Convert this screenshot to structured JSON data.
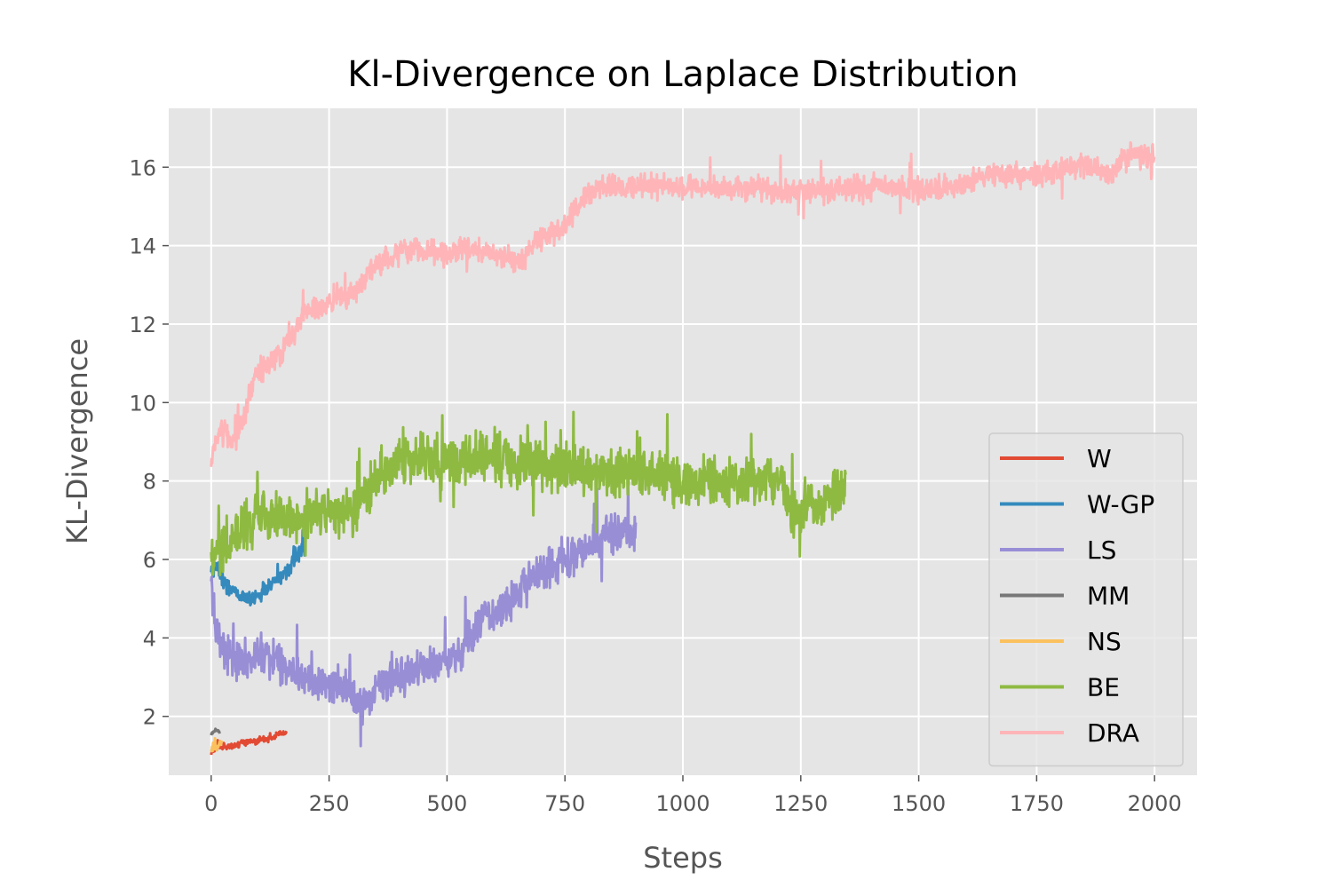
{
  "chart_data": {
    "type": "line",
    "title": "Kl-Divergence on Laplace Distribution",
    "xlabel": "Steps",
    "ylabel": "KL-Divergence",
    "xlim": [
      -90,
      2090
    ],
    "ylim": [
      0.5,
      17.5
    ],
    "xticks": [
      0,
      250,
      500,
      750,
      1000,
      1250,
      1500,
      1750,
      2000
    ],
    "yticks": [
      2,
      4,
      6,
      8,
      10,
      12,
      14,
      16
    ],
    "grid": true,
    "legend_position": "lower right",
    "background": "#e5e5e5",
    "series": [
      {
        "name": "W",
        "color": "#e24a33",
        "noise": 0.08,
        "points": [
          [
            0,
            1.1
          ],
          [
            15,
            1.25
          ],
          [
            40,
            1.22
          ],
          [
            70,
            1.35
          ],
          [
            100,
            1.38
          ],
          [
            130,
            1.45
          ],
          [
            150,
            1.6
          ],
          [
            160,
            1.55
          ]
        ]
      },
      {
        "name": "W-GP",
        "color": "#348abd",
        "noise": 0.18,
        "points": [
          [
            0,
            5.6
          ],
          [
            10,
            5.9
          ],
          [
            30,
            5.3
          ],
          [
            60,
            5.1
          ],
          [
            90,
            5.0
          ],
          [
            120,
            5.3
          ],
          [
            150,
            5.6
          ],
          [
            180,
            6.0
          ],
          [
            200,
            6.3
          ]
        ]
      },
      {
        "name": "LS",
        "color": "#988ed5",
        "noise": 0.45,
        "points": [
          [
            0,
            5.4
          ],
          [
            10,
            4.3
          ],
          [
            20,
            3.8
          ],
          [
            50,
            3.4
          ],
          [
            100,
            3.6
          ],
          [
            150,
            3.3
          ],
          [
            200,
            2.9
          ],
          [
            250,
            2.8
          ],
          [
            300,
            2.6
          ],
          [
            320,
            2.2
          ],
          [
            350,
            2.7
          ],
          [
            400,
            3.0
          ],
          [
            450,
            3.2
          ],
          [
            500,
            3.4
          ],
          [
            530,
            3.6
          ],
          [
            560,
            4.2
          ],
          [
            600,
            4.7
          ],
          [
            650,
            5.1
          ],
          [
            700,
            5.7
          ],
          [
            750,
            6.0
          ],
          [
            800,
            6.3
          ],
          [
            850,
            6.7
          ],
          [
            900,
            6.7
          ]
        ]
      },
      {
        "name": "MM",
        "color": "#777777",
        "noise": 0.05,
        "points": [
          [
            0,
            1.55
          ],
          [
            6,
            1.62
          ],
          [
            12,
            1.65
          ],
          [
            18,
            1.6
          ]
        ]
      },
      {
        "name": "NS",
        "color": "#fbc15e",
        "noise": 0.15,
        "points": [
          [
            0,
            1.1
          ],
          [
            5,
            1.3
          ],
          [
            10,
            1.2
          ],
          [
            15,
            1.3
          ],
          [
            22,
            1.35
          ]
        ]
      },
      {
        "name": "BE",
        "color": "#8eba42",
        "noise": 0.55,
        "points": [
          [
            0,
            6.1
          ],
          [
            50,
            6.7
          ],
          [
            100,
            7.1
          ],
          [
            200,
            7.1
          ],
          [
            300,
            7.2
          ],
          [
            350,
            8.0
          ],
          [
            400,
            8.6
          ],
          [
            500,
            8.5
          ],
          [
            600,
            8.6
          ],
          [
            700,
            8.4
          ],
          [
            800,
            8.3
          ],
          [
            900,
            8.2
          ],
          [
            1000,
            8.0
          ],
          [
            1100,
            8.0
          ],
          [
            1200,
            8.0
          ],
          [
            1240,
            7.1
          ],
          [
            1300,
            7.5
          ],
          [
            1345,
            7.8
          ]
        ]
      },
      {
        "name": "DRA",
        "color": "#ffb5b8",
        "noise": 0.28,
        "points": [
          [
            0,
            8.5
          ],
          [
            15,
            9.3
          ],
          [
            50,
            9.0
          ],
          [
            100,
            10.8
          ],
          [
            150,
            11.3
          ],
          [
            200,
            12.3
          ],
          [
            250,
            12.5
          ],
          [
            300,
            12.8
          ],
          [
            350,
            13.5
          ],
          [
            400,
            13.8
          ],
          [
            450,
            13.9
          ],
          [
            500,
            13.8
          ],
          [
            550,
            13.9
          ],
          [
            600,
            13.8
          ],
          [
            650,
            13.6
          ],
          [
            700,
            14.2
          ],
          [
            750,
            14.5
          ],
          [
            800,
            15.4
          ],
          [
            850,
            15.5
          ],
          [
            900,
            15.5
          ],
          [
            950,
            15.5
          ],
          [
            1000,
            15.5
          ],
          [
            1050,
            15.5
          ],
          [
            1100,
            15.4
          ],
          [
            1150,
            15.5
          ],
          [
            1200,
            15.4
          ],
          [
            1250,
            15.4
          ],
          [
            1300,
            15.4
          ],
          [
            1350,
            15.5
          ],
          [
            1400,
            15.5
          ],
          [
            1450,
            15.5
          ],
          [
            1500,
            15.4
          ],
          [
            1550,
            15.5
          ],
          [
            1600,
            15.6
          ],
          [
            1650,
            15.8
          ],
          [
            1700,
            15.8
          ],
          [
            1750,
            15.8
          ],
          [
            1800,
            15.9
          ],
          [
            1850,
            16.1
          ],
          [
            1900,
            15.8
          ],
          [
            1950,
            16.3
          ],
          [
            2000,
            16.3
          ]
        ]
      }
    ]
  }
}
